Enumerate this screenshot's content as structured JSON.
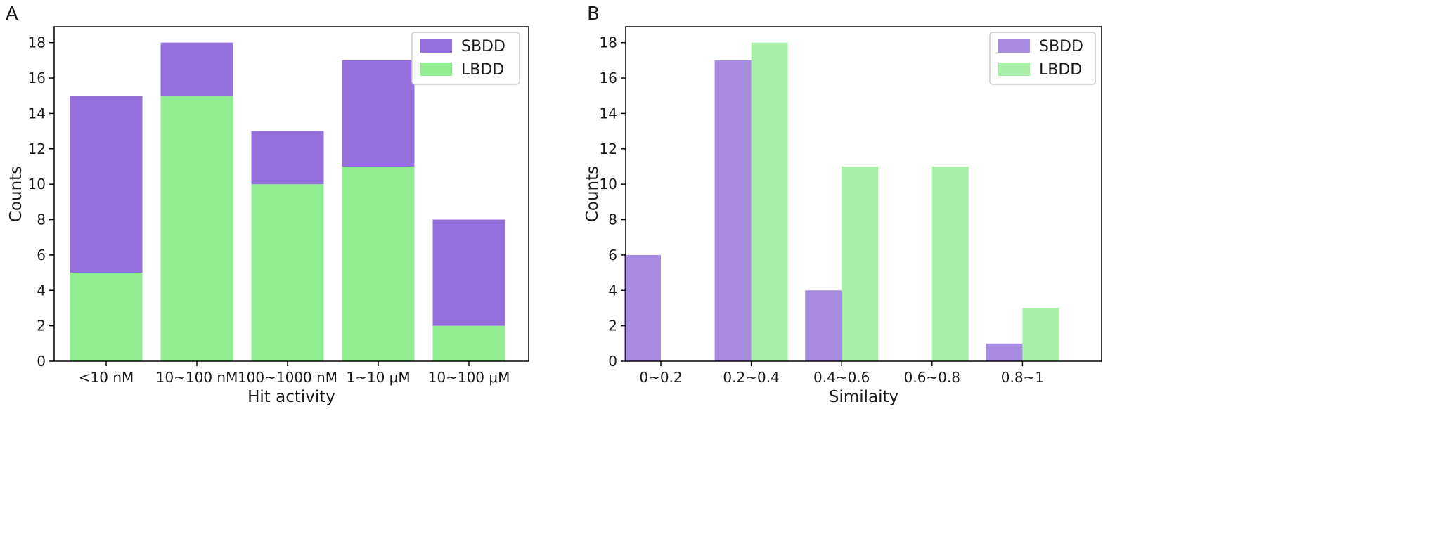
{
  "chart_data": [
    {
      "panel": "A",
      "type": "bar",
      "stacked": true,
      "categories": [
        "<10 nM",
        "10~100 nM",
        "100~1000 nM",
        "1~10 μM",
        "10~100 μM"
      ],
      "series": [
        {
          "name": "SBDD",
          "values": [
            10,
            3,
            3,
            6,
            6
          ],
          "color": "#9370db"
        },
        {
          "name": "LBDD",
          "values": [
            5,
            15,
            10,
            11,
            2
          ],
          "color": "#90ee90"
        }
      ],
      "totals": [
        15,
        18,
        13,
        17,
        8
      ],
      "title": "",
      "xlabel": "Hit activity",
      "ylabel": "Counts",
      "ylim": [
        0,
        18.9
      ],
      "yticks": [
        "0",
        "2",
        "4",
        "6",
        "8",
        "10",
        "12",
        "14",
        "16",
        "18"
      ],
      "legend": {
        "placement": "top-right",
        "entries": [
          "SBDD",
          "LBDD"
        ]
      },
      "grid": false
    },
    {
      "panel": "B",
      "type": "bar",
      "stacked": false,
      "categories": [
        "0~0.2",
        "0.2~0.4",
        "0.4~0.6",
        "0.6~0.8",
        "0.8~1"
      ],
      "series": [
        {
          "name": "SBDD",
          "values": [
            6,
            17,
            4,
            0,
            1
          ],
          "color": "#a68be0"
        },
        {
          "name": "LBDD",
          "values": [
            0,
            18,
            11,
            11,
            3
          ],
          "color": "#a8f0a8"
        }
      ],
      "title": "",
      "xlabel": "Similaity",
      "ylabel": "Counts",
      "ylim": [
        0,
        18.9
      ],
      "yticks": [
        "0",
        "2",
        "4",
        "6",
        "8",
        "10",
        "12",
        "14",
        "16",
        "18"
      ],
      "legend": {
        "placement": "top-right",
        "entries": [
          "SBDD",
          "LBDD"
        ]
      },
      "grid": false
    }
  ]
}
